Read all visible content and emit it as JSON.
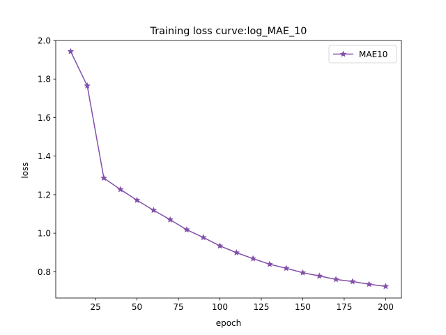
{
  "chart_data": {
    "type": "line",
    "title": "Training loss curve:log_MAE_10",
    "xlabel": "epoch",
    "ylabel": "loss",
    "xlim": [
      1,
      209.5
    ],
    "ylim": [
      0.6636,
      2.0
    ],
    "xticks": [
      25,
      50,
      75,
      100,
      125,
      150,
      175,
      200
    ],
    "yticks": [
      0.8,
      1.0,
      1.2,
      1.4,
      1.6,
      1.8,
      2.0
    ],
    "xtick_labels": [
      "25",
      "50",
      "75",
      "100",
      "125",
      "150",
      "175",
      "200"
    ],
    "ytick_labels": [
      "0.8",
      "1.0",
      "1.2",
      "1.4",
      "1.6",
      "1.8",
      "2.0"
    ],
    "grid": false,
    "legend_position": "top-right",
    "series": [
      {
        "name": "MAE10",
        "color": "#8250a8",
        "marker": "star",
        "x": [
          10,
          20,
          30,
          40,
          50,
          60,
          70,
          80,
          90,
          100,
          110,
          120,
          130,
          140,
          150,
          160,
          170,
          180,
          190,
          200
        ],
        "values": [
          1.943,
          1.765,
          1.286,
          1.227,
          1.171,
          1.119,
          1.07,
          1.018,
          0.978,
          0.934,
          0.899,
          0.868,
          0.839,
          0.818,
          0.795,
          0.778,
          0.76,
          0.749,
          0.735,
          0.724
        ]
      }
    ]
  }
}
